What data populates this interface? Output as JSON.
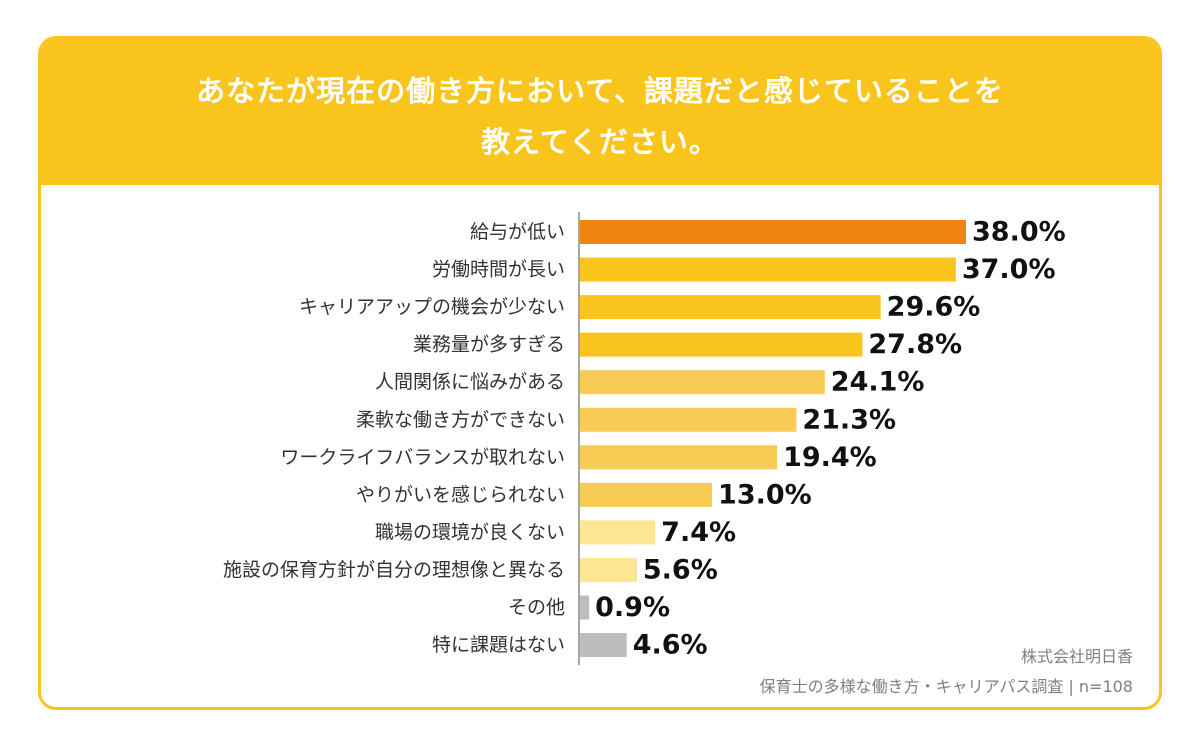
{
  "header": {
    "title_line1": "あなたが現在の働き方において、課題だと感じていることを",
    "title_line2": "教えてください。"
  },
  "footer": {
    "company": "株式会社明日香",
    "survey": "保育士の多様な働き方・キャリアパス調査 | n=108"
  },
  "chart_data": {
    "type": "bar",
    "orientation": "horizontal",
    "categories": [
      "給与が低い",
      "労働時間が長い",
      "キャリアアップの機会が少ない",
      "業務量が多すぎる",
      "人間関係に悩みがある",
      "柔軟な働き方ができない",
      "ワークライフバランスが取れない",
      "やりがいを感じられない",
      "職場の環境が良くない",
      "施設の保育方針が自分の理想像と異なる",
      "その他",
      "特に課題はない"
    ],
    "values": [
      38.0,
      37.0,
      29.6,
      27.8,
      24.1,
      21.3,
      19.4,
      13.0,
      7.4,
      5.6,
      0.9,
      4.6
    ],
    "value_labels": [
      "38.0%",
      "37.0%",
      "29.6%",
      "27.8%",
      "24.1%",
      "21.3%",
      "19.4%",
      "13.0%",
      "7.4%",
      "5.6%",
      "0.9%",
      "4.6%"
    ],
    "unit": "%",
    "bar_colors": [
      "#F18312",
      "#F9C51C",
      "#F9C51C",
      "#F9C51C",
      "#F8CB55",
      "#F8CB55",
      "#F8CB55",
      "#F8CB55",
      "#FCE694",
      "#FCE694",
      "#BDBDBD",
      "#BDBDBD"
    ],
    "xlim": [
      0,
      38.0
    ],
    "grid": false,
    "legend": "none"
  }
}
